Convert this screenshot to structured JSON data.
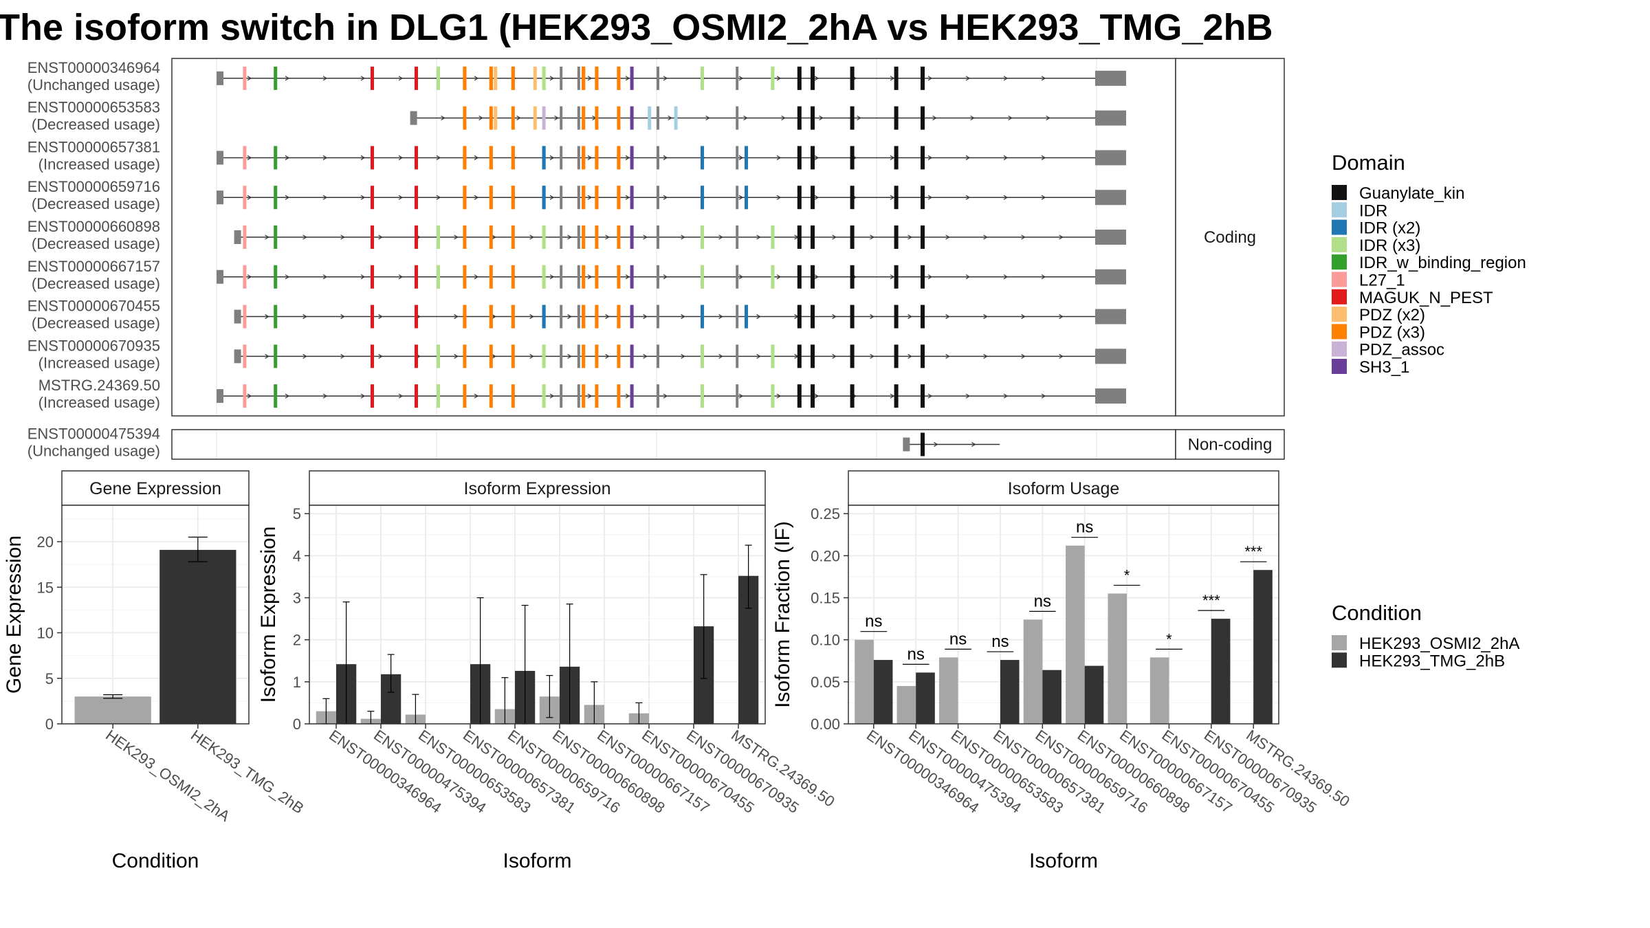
{
  "title": "The isoform switch in DLG1 (HEK293_OSMI2_2hA vs HEK293_TMG_2hB",
  "colors": {
    "cond_a": "#a6a6a6",
    "cond_b": "#333333",
    "panel_border": "#333333",
    "grid": "#ebebeb",
    "strip_bg": "#ffffff"
  },
  "transcripts": {
    "coding_label": "Coding",
    "noncoding_label": "Non-coding",
    "coding": [
      {
        "id": "ENST00000346964",
        "usage": "(Unchanged usage)",
        "range": [
          0,
          1
        ],
        "domains": [
          "L27_1",
          "IDR_w_binding_region",
          "MAGUK_N_PEST",
          "IDR (x3)",
          "PDZ (x3)",
          "PDZ (x2)",
          "IDR (x3)",
          "PDZ (x3)",
          "SH3_1",
          "IDR (x3)",
          "Guanylate_kin"
        ]
      },
      {
        "id": "ENST00000653583",
        "usage": "(Decreased usage)",
        "range": [
          0.22,
          1
        ],
        "domains": [
          "PDZ (x2)",
          "PDZ_assoc",
          "PDZ (x3)",
          "SH3_1",
          "IDR",
          "Guanylate_kin"
        ]
      },
      {
        "id": "ENST00000657381",
        "usage": "(Increased usage)",
        "range": [
          0,
          1
        ],
        "domains": [
          "L27_1",
          "IDR_w_binding_region",
          "MAGUK_N_PEST",
          "PDZ (x3)",
          "IDR (x2)",
          "PDZ (x3)",
          "SH3_1",
          "IDR (x2)",
          "Guanylate_kin"
        ]
      },
      {
        "id": "ENST00000659716",
        "usage": "(Decreased usage)",
        "range": [
          0,
          1
        ],
        "domains": [
          "L27_1",
          "IDR_w_binding_region",
          "MAGUK_N_PEST",
          "PDZ (x3)",
          "IDR (x2)",
          "PDZ (x3)",
          "SH3_1",
          "IDR (x2)",
          "Guanylate_kin"
        ]
      },
      {
        "id": "ENST00000660898",
        "usage": "(Decreased usage)",
        "range": [
          0.02,
          1
        ],
        "domains": [
          "L27_1",
          "IDR_w_binding_region",
          "MAGUK_N_PEST",
          "IDR (x3)",
          "PDZ (x3)",
          "SH3_1",
          "IDR (x3)",
          "Guanylate_kin"
        ]
      },
      {
        "id": "ENST00000667157",
        "usage": "(Decreased usage)",
        "range": [
          0,
          1
        ],
        "domains": [
          "L27_1",
          "IDR_w_binding_region",
          "MAGUK_N_PEST",
          "IDR (x3)",
          "PDZ (x3)",
          "SH3_1",
          "IDR (x3)",
          "Guanylate_kin"
        ]
      },
      {
        "id": "ENST00000670455",
        "usage": "(Decreased usage)",
        "range": [
          0.02,
          1
        ],
        "domains": [
          "L27_1",
          "IDR_w_binding_region",
          "MAGUK_N_PEST",
          "PDZ (x3)",
          "IDR (x2)",
          "PDZ (x3)",
          "SH3_1",
          "IDR (x2)",
          "Guanylate_kin"
        ]
      },
      {
        "id": "ENST00000670935",
        "usage": "(Increased usage)",
        "range": [
          0.02,
          1
        ],
        "domains": [
          "L27_1",
          "IDR_w_binding_region",
          "MAGUK_N_PEST",
          "IDR (x3)",
          "PDZ (x3)",
          "SH3_1",
          "IDR (x3)",
          "Guanylate_kin"
        ]
      },
      {
        "id": "MSTRG.24369.50",
        "usage": "(Increased usage)",
        "range": [
          0,
          1
        ],
        "domains": [
          "L27_1",
          "IDR_w_binding_region",
          "MAGUK_N_PEST",
          "IDR (x3)",
          "PDZ (x3)",
          "SH3_1",
          "IDR (x3)",
          "Guanylate_kin"
        ]
      }
    ],
    "noncoding": [
      {
        "id": "ENST00000475394",
        "usage": "(Unchanged usage)",
        "range": [
          0.78,
          0.89
        ],
        "domains": [
          "Guanylate_kin"
        ]
      }
    ]
  },
  "legend_domain": {
    "title": "Domain",
    "items": [
      {
        "label": "Guanylate_kin",
        "color": "#111111"
      },
      {
        "label": "IDR",
        "color": "#a6cee3"
      },
      {
        "label": "IDR (x2)",
        "color": "#1f78b4"
      },
      {
        "label": "IDR (x3)",
        "color": "#b2df8a"
      },
      {
        "label": "IDR_w_binding_region",
        "color": "#33a02c"
      },
      {
        "label": "L27_1",
        "color": "#fb9a99"
      },
      {
        "label": "MAGUK_N_PEST",
        "color": "#e31a1c"
      },
      {
        "label": "PDZ (x2)",
        "color": "#fdbf6f"
      },
      {
        "label": "PDZ (x3)",
        "color": "#ff7f00"
      },
      {
        "label": "PDZ_assoc",
        "color": "#cab2d6"
      },
      {
        "label": "SH3_1",
        "color": "#6a3d9a"
      }
    ]
  },
  "legend_condition": {
    "title": "Condition",
    "items": [
      {
        "label": "HEK293_OSMI2_2hA",
        "color": "#a6a6a6"
      },
      {
        "label": "HEK293_TMG_2hB",
        "color": "#333333"
      }
    ]
  },
  "chart_data": [
    {
      "type": "bar",
      "title": "Gene Expression",
      "xlabel": "Condition",
      "ylabel": "Gene Expression",
      "categories": [
        "HEK293_OSMI2_2hA",
        "HEK293_TMG_2hB"
      ],
      "values": [
        3.0,
        19.1
      ],
      "errors": [
        [
          2.8,
          3.2
        ],
        [
          17.8,
          20.5
        ]
      ],
      "ylim": [
        0,
        24
      ],
      "yticks": [
        0,
        5,
        10,
        15,
        20
      ]
    },
    {
      "type": "bar",
      "title": "Isoform Expression",
      "xlabel": "Isoform",
      "ylabel": "Isoform Expression",
      "categories": [
        "ENST00000346964",
        "ENST00000475394",
        "ENST00000653583",
        "ENST00000657381",
        "ENST00000659716",
        "ENST00000660898",
        "ENST00000667157",
        "ENST00000670455",
        "ENST00000670935",
        "MSTRG.24369.50"
      ],
      "series": [
        {
          "name": "HEK293_OSMI2_2hA",
          "values": [
            0.3,
            0.12,
            0.22,
            0.0,
            0.35,
            0.65,
            0.45,
            0.25,
            0.0,
            0.0
          ],
          "errors": [
            [
              0.0,
              0.6
            ],
            [
              0.0,
              0.3
            ],
            [
              0.0,
              0.7
            ],
            null,
            [
              0.0,
              1.1
            ],
            [
              0.15,
              1.15
            ],
            [
              0.0,
              1.0
            ],
            [
              0.0,
              0.5
            ],
            null,
            null
          ]
        },
        {
          "name": "HEK293_TMG_2hB",
          "values": [
            1.42,
            1.18,
            0.0,
            1.42,
            1.26,
            1.36,
            0.0,
            0.0,
            2.32,
            3.52
          ],
          "errors": [
            [
              0.0,
              2.9
            ],
            [
              0.75,
              1.65
            ],
            null,
            [
              0.0,
              3.0
            ],
            [
              0.0,
              2.82
            ],
            [
              0.0,
              2.85
            ],
            null,
            null,
            [
              1.08,
              3.55
            ],
            [
              2.75,
              4.25
            ]
          ]
        }
      ],
      "ylim": [
        0,
        5.2
      ],
      "yticks": [
        0,
        1,
        2,
        3,
        4,
        5
      ]
    },
    {
      "type": "bar",
      "title": "Isoform Usage",
      "xlabel": "Isoform",
      "ylabel": "Isoform Fraction (IF)",
      "categories": [
        "ENST00000346964",
        "ENST00000475394",
        "ENST00000653583",
        "ENST00000657381",
        "ENST00000659716",
        "ENST00000660898",
        "ENST00000667157",
        "ENST00000670455",
        "ENST00000670935",
        "MSTRG.24369.50"
      ],
      "series": [
        {
          "name": "HEK293_OSMI2_2hA",
          "values": [
            0.1,
            0.045,
            0.079,
            0.0,
            0.124,
            0.212,
            0.155,
            0.079,
            0.0,
            0.0
          ]
        },
        {
          "name": "HEK293_TMG_2hB",
          "values": [
            0.076,
            0.061,
            0.0,
            0.076,
            0.064,
            0.069,
            0.0,
            0.0,
            0.125,
            0.183
          ]
        }
      ],
      "significance": [
        "ns",
        "ns",
        "ns",
        "ns",
        "ns",
        "ns",
        "*",
        "*",
        "***",
        "***"
      ],
      "ylim": [
        0,
        0.26
      ],
      "yticks": [
        0.0,
        0.05,
        0.1,
        0.15,
        0.2,
        0.25
      ],
      "ytick_labels": [
        "0.00",
        "0.05",
        "0.10",
        "0.15",
        "0.20",
        "0.25"
      ]
    }
  ]
}
